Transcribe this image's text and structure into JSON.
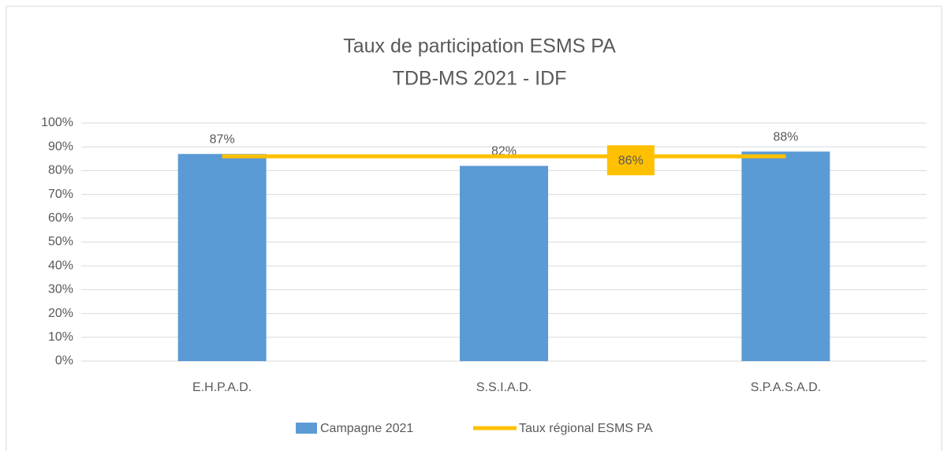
{
  "chart_data": {
    "type": "bar",
    "title": [
      "Taux de participation ESMS PA",
      "TDB-MS 2021 - IDF"
    ],
    "categories": [
      "E.H.P.A.D.",
      "S.S.I.A.D.",
      "S.P.A.S.A.D."
    ],
    "series": [
      {
        "name": "Campagne 2021",
        "color": "#5b9bd5",
        "values": [
          87,
          82,
          88
        ],
        "value_labels": [
          "87%",
          "82%",
          "88%"
        ]
      }
    ],
    "reference_line": {
      "name": "Taux régional ESMS PA",
      "color": "#ffc000",
      "value": 86,
      "value_label": "86%"
    },
    "ylim": [
      0,
      100
    ],
    "yticks": [
      {
        "value": 0,
        "label": "0%"
      },
      {
        "value": 10,
        "label": "10%"
      },
      {
        "value": 20,
        "label": "20%"
      },
      {
        "value": 30,
        "label": "30%"
      },
      {
        "value": 40,
        "label": "40%"
      },
      {
        "value": 50,
        "label": "50%"
      },
      {
        "value": 60,
        "label": "60%"
      },
      {
        "value": 70,
        "label": "70%"
      },
      {
        "value": 80,
        "label": "80%"
      },
      {
        "value": 90,
        "label": "90%"
      },
      {
        "value": 100,
        "label": "100%"
      }
    ],
    "grid": true,
    "legend": "bottom"
  }
}
